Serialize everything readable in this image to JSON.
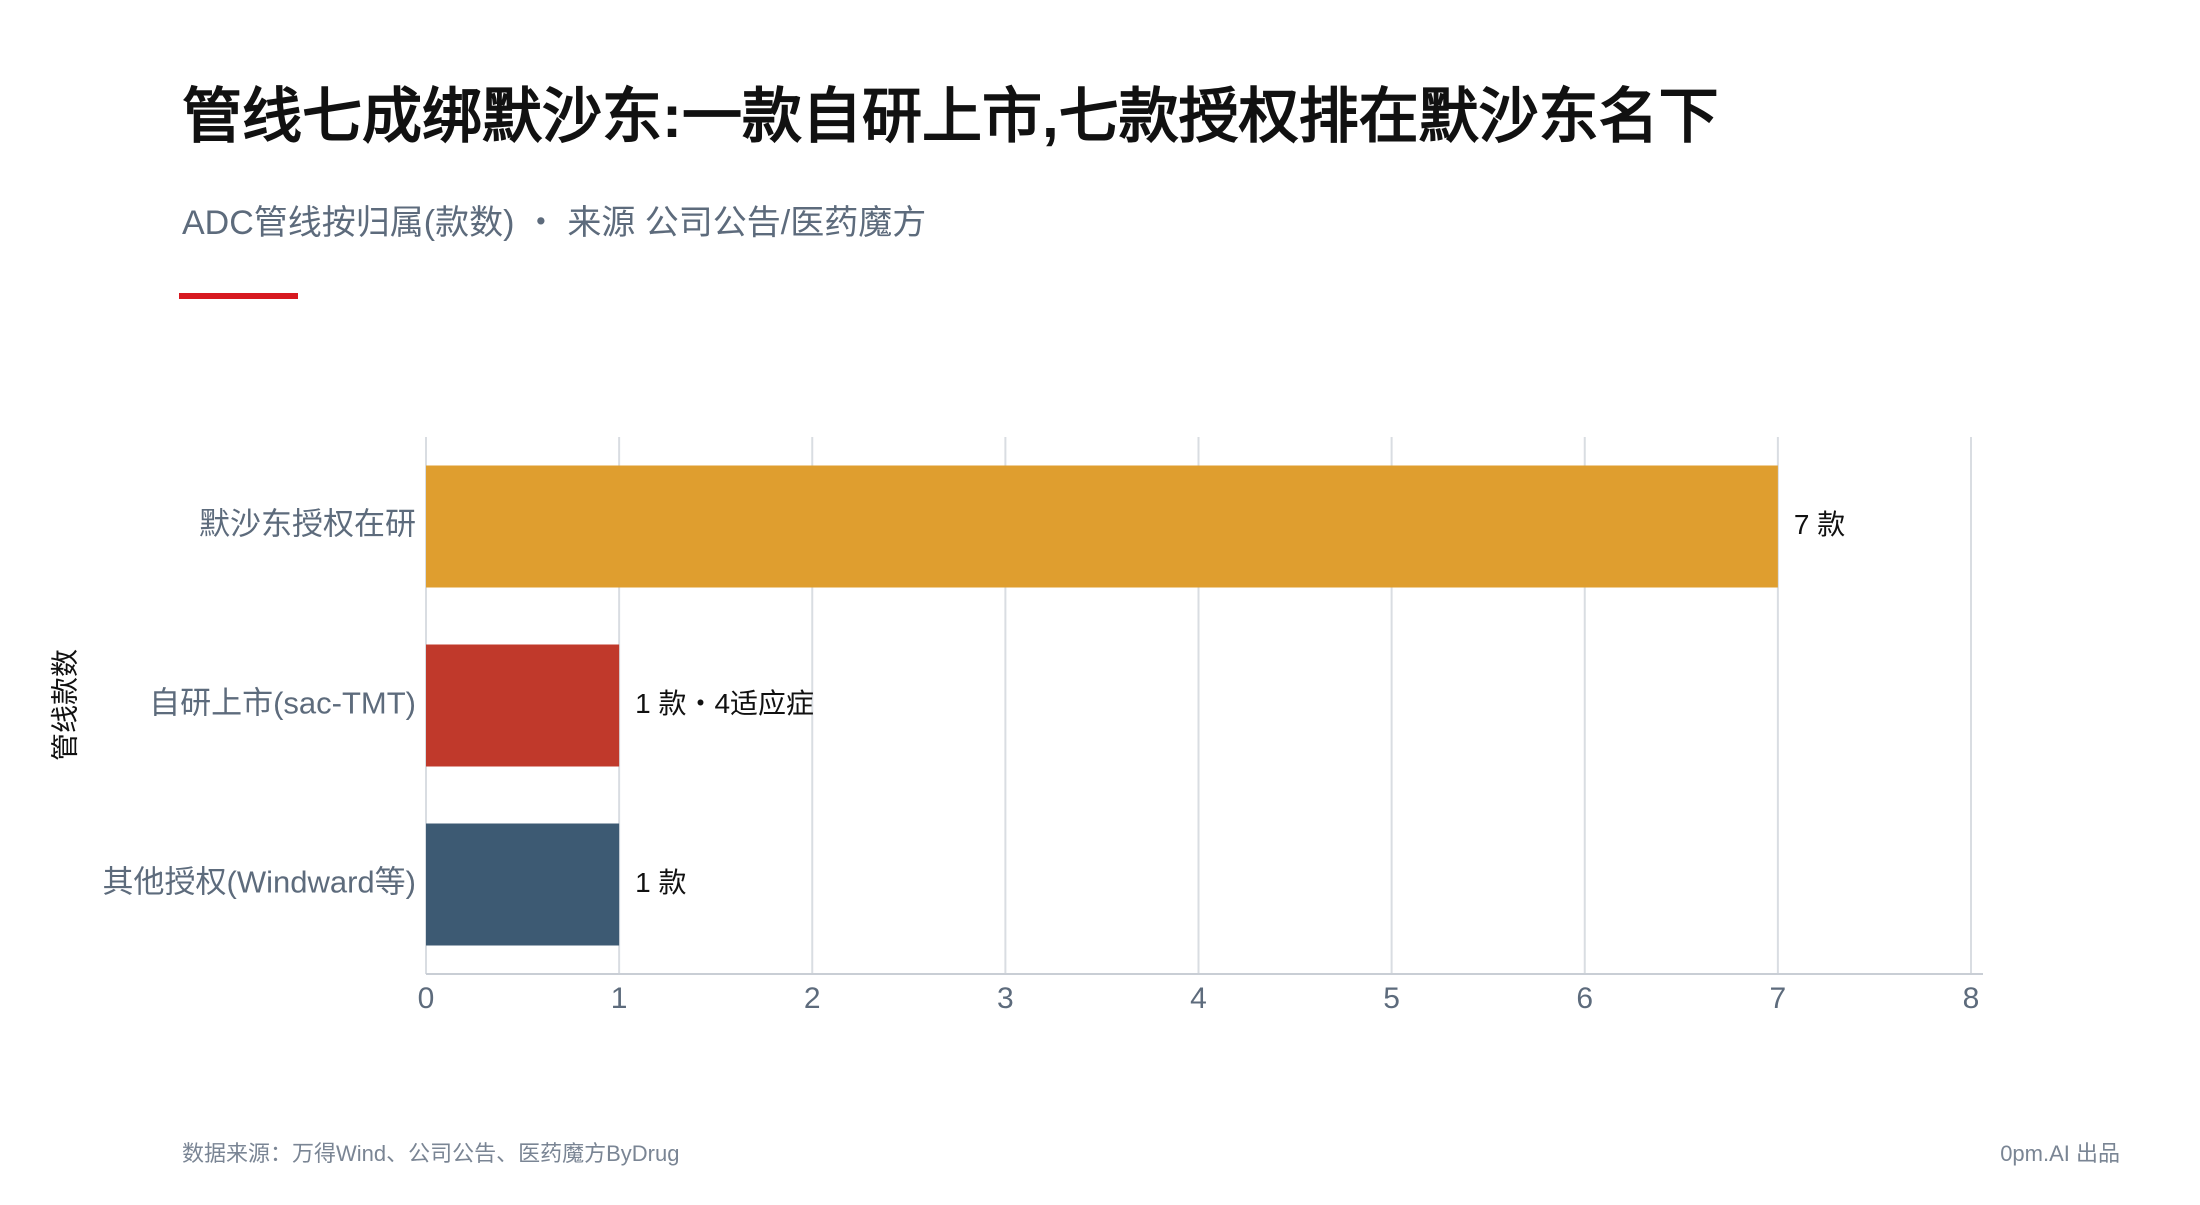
{
  "chart_data": {
    "type": "barh",
    "title": "管线七成绑默沙东:一款自研上市,七款授权排在默沙东名下",
    "subtitle": "ADC管线按归属(款数) ・ 来源 公司公告/医药魔方",
    "ylabel": "管线款数",
    "categories": [
      "默沙东授权在研",
      "自研上市(sac-TMT)",
      "其他授权(Windward等)"
    ],
    "values": [
      7,
      1,
      1
    ],
    "value_labels": [
      "7 款",
      "1 款・4适应症",
      "1 款"
    ],
    "colors": [
      "#df9e2f",
      "#c0392b",
      "#3d5a73"
    ],
    "xlim": [
      0,
      8
    ],
    "xticks": [
      0,
      1,
      2,
      3,
      4,
      5,
      6,
      7,
      8
    ],
    "grid": true,
    "source": "数据来源：万得Wind、公司公告、医药魔方ByDrug",
    "brand": "0pm.AI 出品"
  }
}
